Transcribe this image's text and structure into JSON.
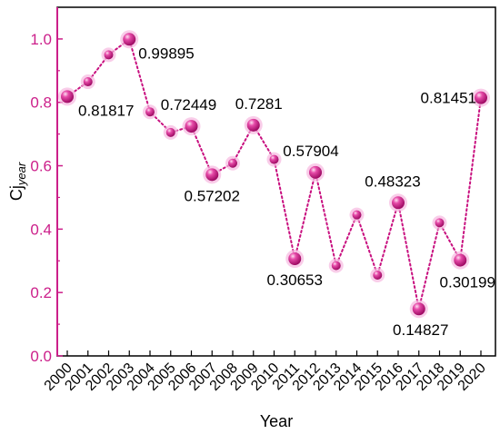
{
  "chart_data": {
    "type": "line",
    "title": "",
    "xlabel": "Year",
    "ylabel": {
      "main": "Cj",
      "sub": "year"
    },
    "ylim": [
      0,
      1.1
    ],
    "yticks": [
      "0.0",
      "0.2",
      "0.4",
      "0.6",
      "0.8",
      "1.0"
    ],
    "grid": false,
    "line_style": "dotted",
    "marker": "sphere",
    "colors": {
      "series": "#c8107f",
      "marker_light": "#f7b8e0",
      "marker_dark": "#9e0a63",
      "axis": "#cc1f8a",
      "frame": "#000000"
    },
    "categories": [
      "2000",
      "2001",
      "2002",
      "2003",
      "2004",
      "2005",
      "2006",
      "2007",
      "2008",
      "2009",
      "2010",
      "2011",
      "2012",
      "2013",
      "2014",
      "2015",
      "2016",
      "2017",
      "2018",
      "2019",
      "2020"
    ],
    "values": [
      0.81817,
      0.865,
      0.95,
      0.99895,
      0.77,
      0.705,
      0.72449,
      0.57202,
      0.608,
      0.7281,
      0.62,
      0.30653,
      0.57904,
      0.285,
      0.445,
      0.255,
      0.48323,
      0.14827,
      0.42,
      0.30199,
      0.81451
    ],
    "data_labels": [
      {
        "index": 0,
        "text": "0.81817"
      },
      {
        "index": 3,
        "text": "0.99895"
      },
      {
        "index": 6,
        "text": "0.72449"
      },
      {
        "index": 7,
        "text": "0.57202"
      },
      {
        "index": 9,
        "text": "0.7281"
      },
      {
        "index": 11,
        "text": "0.30653"
      },
      {
        "index": 12,
        "text": "0.57904"
      },
      {
        "index": 16,
        "text": "0.48323"
      },
      {
        "index": 17,
        "text": "0.14827"
      },
      {
        "index": 19,
        "text": "0.30199"
      },
      {
        "index": 20,
        "text": "0.81451"
      }
    ]
  }
}
